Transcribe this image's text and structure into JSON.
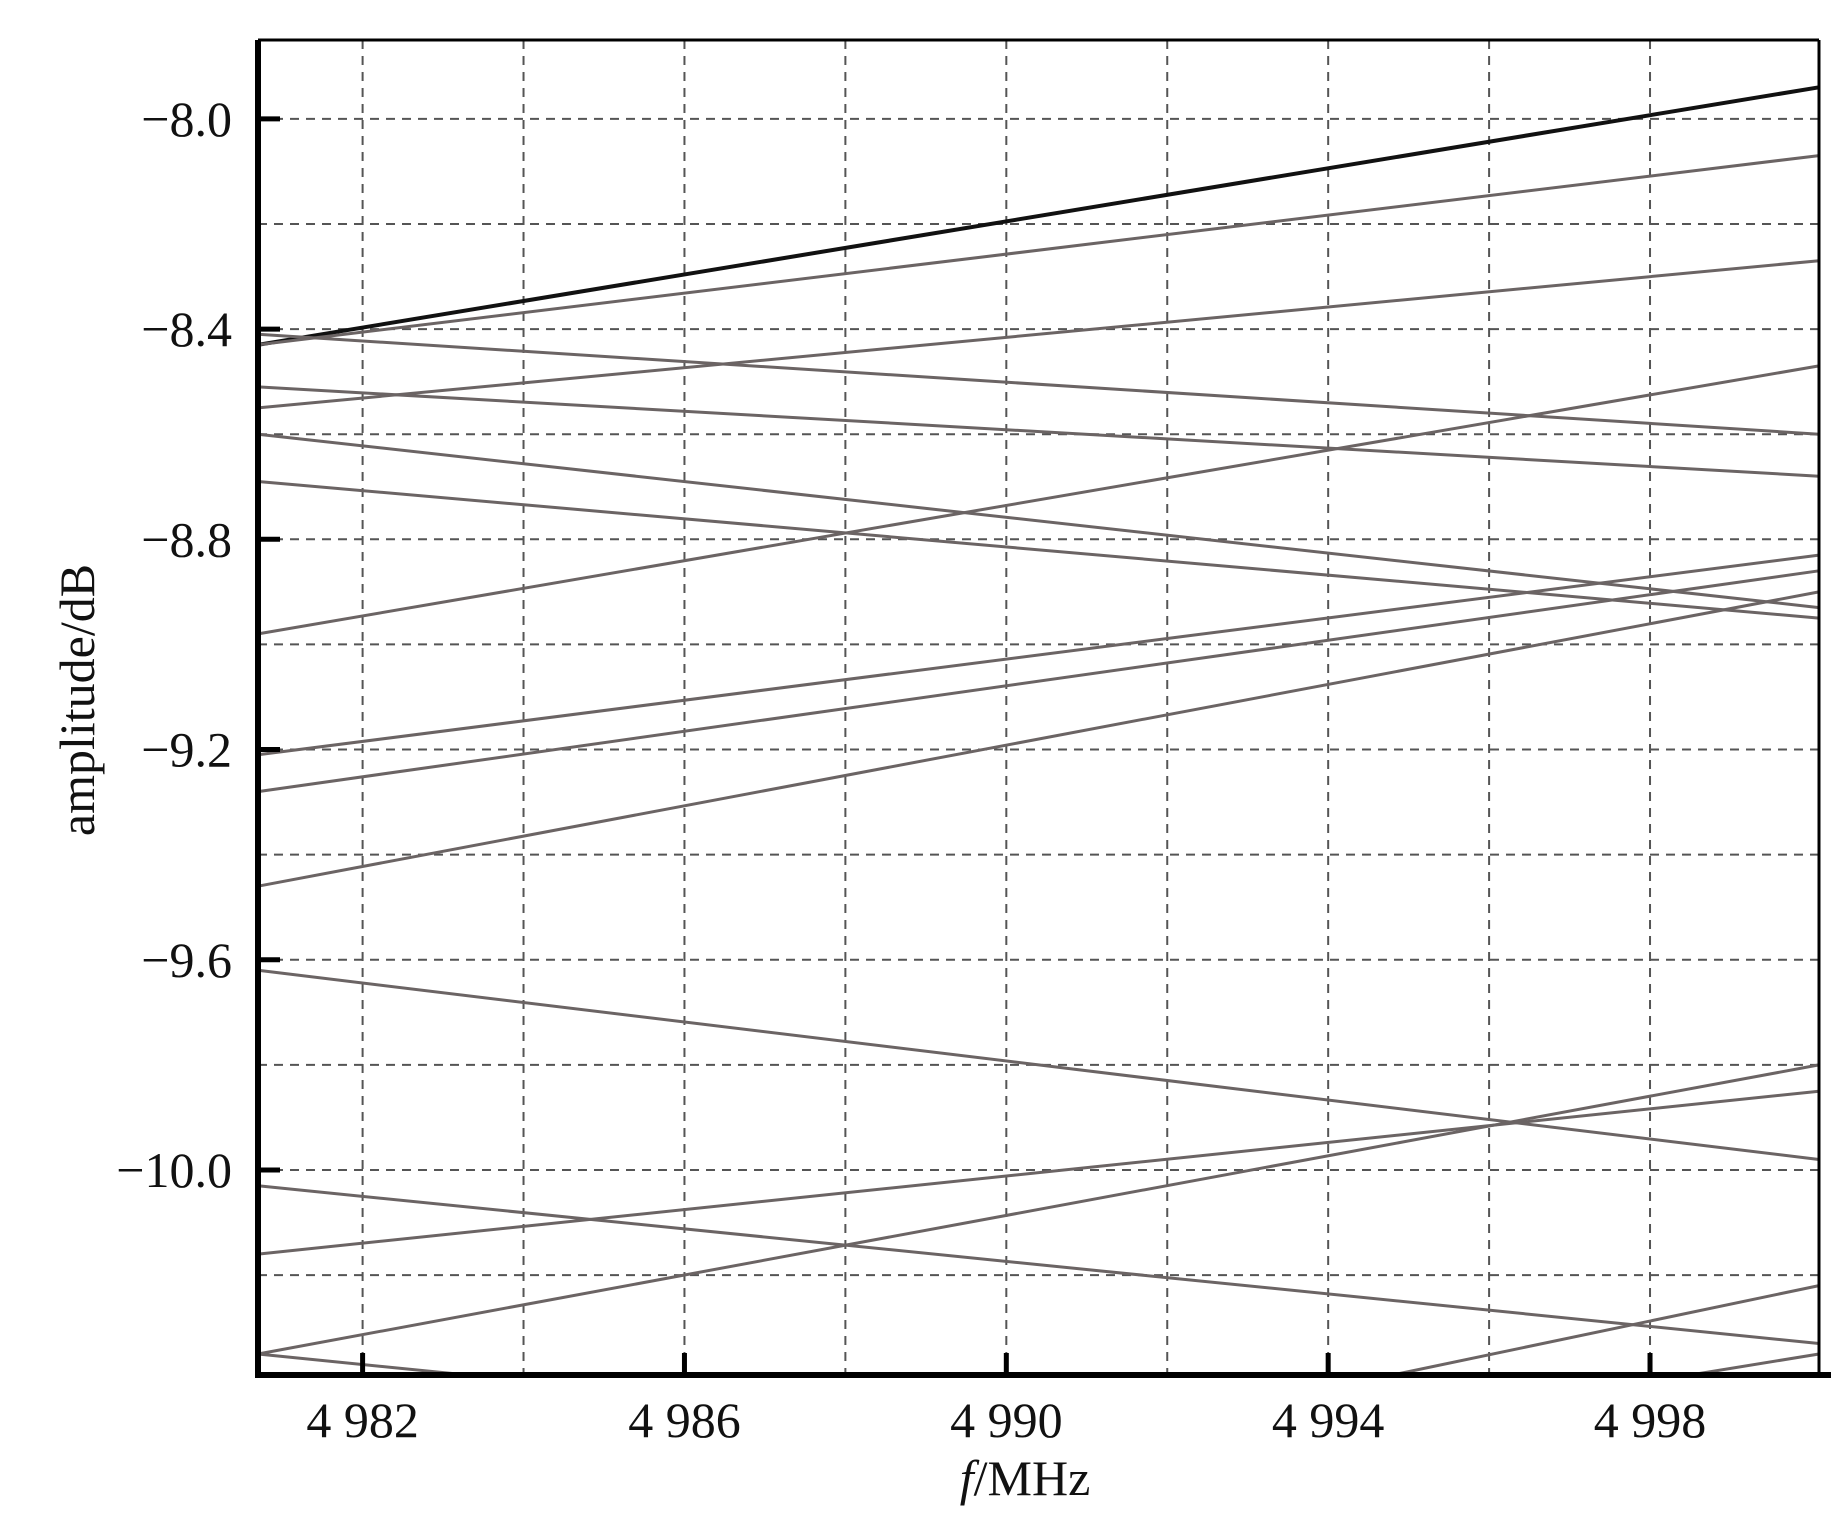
{
  "chart_data": {
    "type": "line",
    "title": "",
    "xlabel_italic": "f",
    "xlabel_rest": "/MHz",
    "ylabel": "amplitude/dB",
    "xlim": [
      4980.7,
      5000.1
    ],
    "ylim": [
      -10.39,
      -7.85
    ],
    "grid": true,
    "grid_style": "dashed",
    "x_ticks": [
      4982,
      4986,
      4990,
      4994,
      4998
    ],
    "x_tick_labels": [
      "4 982",
      "4 986",
      "4 990",
      "4 994",
      "4 998"
    ],
    "x_grid": [
      4982,
      4984,
      4986,
      4988,
      4990,
      4992,
      4994,
      4996,
      4998
    ],
    "y_ticks": [
      -8.0,
      -8.4,
      -8.8,
      -9.2,
      -9.6,
      -10.0
    ],
    "y_tick_labels": [
      "−8.0",
      "−8.4",
      "−8.8",
      "−9.2",
      "−9.6",
      "−10.0"
    ],
    "y_grid": [
      -8.0,
      -8.2,
      -8.4,
      -8.6,
      -8.8,
      -9.0,
      -9.2,
      -9.4,
      -9.6,
      -9.8,
      -10.0,
      -10.2
    ],
    "line_color": "#6b6464",
    "highlight_color": "#111111",
    "series": [
      {
        "x": [
          4980.7,
          5000.1
        ],
        "y": [
          -8.43,
          -7.94
        ],
        "highlight": true
      },
      {
        "x": [
          4980.7,
          5000.1
        ],
        "y": [
          -8.43,
          -8.07
        ]
      },
      {
        "x": [
          4980.7,
          5000.1
        ],
        "y": [
          -8.55,
          -8.27
        ]
      },
      {
        "x": [
          4980.7,
          5000.1
        ],
        "y": [
          -8.41,
          -8.6
        ]
      },
      {
        "x": [
          4980.7,
          5000.1
        ],
        "y": [
          -8.51,
          -8.68
        ]
      },
      {
        "x": [
          4980.7,
          5000.1
        ],
        "y": [
          -8.98,
          -8.47
        ]
      },
      {
        "x": [
          4980.7,
          5000.1
        ],
        "y": [
          -8.6,
          -8.93
        ]
      },
      {
        "x": [
          4980.7,
          5000.1
        ],
        "y": [
          -8.69,
          -8.95
        ]
      },
      {
        "x": [
          4980.7,
          5000.1
        ],
        "y": [
          -9.21,
          -8.83
        ]
      },
      {
        "x": [
          4980.7,
          5000.1
        ],
        "y": [
          -9.28,
          -8.86
        ]
      },
      {
        "x": [
          4980.7,
          5000.1
        ],
        "y": [
          -9.46,
          -8.9
        ]
      },
      {
        "x": [
          4980.7,
          5000.1
        ],
        "y": [
          -9.62,
          -9.98
        ]
      },
      {
        "x": [
          4980.7,
          5000.1
        ],
        "y": [
          -10.03,
          -10.33
        ]
      },
      {
        "x": [
          4980.7,
          5000.1
        ],
        "y": [
          -10.16,
          -9.85
        ]
      },
      {
        "x": [
          4980.7,
          5000.1
        ],
        "y": [
          -10.35,
          -9.8
        ]
      },
      {
        "x": [
          4980.7,
          4983.3
        ],
        "y": [
          -10.35,
          -10.39
        ]
      },
      {
        "x": [
          4994.8,
          5000.1
        ],
        "y": [
          -10.39,
          -10.22
        ]
      },
      {
        "x": [
          4998.5,
          5000.1
        ],
        "y": [
          -10.39,
          -10.35
        ]
      }
    ]
  }
}
